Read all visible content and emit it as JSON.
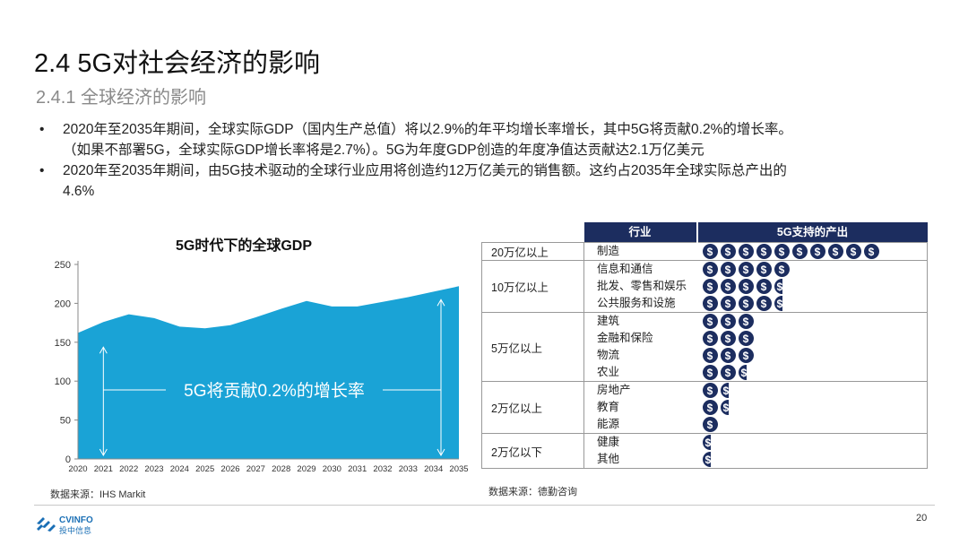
{
  "title": "2.4 5G对社会经济的影响",
  "subtitle": "2.4.1 全球经济的影响",
  "bullets": [
    {
      "lines": [
        "2020年至2035年期间，全球实际GDP（国内生产总值）将以2.9%的年平均增长率增长，其中5G将贡献0.2%的增长率。",
        "（如果不部署5G，全球实际GDP增长率将是2.7%）。5G为年度GDP创造的年度净值达贡献达2.1万亿美元"
      ]
    },
    {
      "lines": [
        "2020年至2035年期间，由5G技术驱动的全球行业应用将创造约12万亿美元的销售额。这约占2035年全球实际总产出的",
        "4.6%"
      ]
    }
  ],
  "bullet_symbol": "•",
  "chart_data": {
    "type": "area",
    "title": "5G时代下的全球GDP",
    "annotation": "5G将贡献0.2%的增长率",
    "x": [
      "2020",
      "2021",
      "2022",
      "2023",
      "2024",
      "2025",
      "2026",
      "2027",
      "2028",
      "2029",
      "2030",
      "2031",
      "2032",
      "2033",
      "2034",
      "2035"
    ],
    "values": [
      162,
      176,
      186,
      181,
      170,
      168,
      172,
      182,
      193,
      203,
      196,
      196,
      202,
      208,
      215,
      222
    ],
    "yticks": [
      0,
      50,
      100,
      150,
      200,
      250
    ],
    "ylim": [
      0,
      250
    ],
    "color": "#1aa3d6"
  },
  "chart_source": "数据来源：IHS Markit",
  "table": {
    "headers": [
      "行业",
      "5G支持的产出"
    ],
    "tiers": [
      {
        "tier": "20万亿以上",
        "rows": [
          {
            "industry": "制造",
            "coins": 10
          }
        ]
      },
      {
        "tier": "10万亿以上",
        "rows": [
          {
            "industry": "信息和通信",
            "coins": 5
          },
          {
            "industry": "批发、零售和娱乐",
            "coins": 4.5
          },
          {
            "industry": "公共服务和设施",
            "coins": 4.5
          }
        ]
      },
      {
        "tier": "5万亿以上",
        "rows": [
          {
            "industry": "建筑",
            "coins": 3
          },
          {
            "industry": "金融和保险",
            "coins": 3
          },
          {
            "industry": "物流",
            "coins": 3
          },
          {
            "industry": "农业",
            "coins": 2.5
          }
        ]
      },
      {
        "tier": "2万亿以上",
        "rows": [
          {
            "industry": "房地产",
            "coins": 1.5
          },
          {
            "industry": "教育",
            "coins": 1.5
          },
          {
            "industry": "能源",
            "coins": 1
          }
        ]
      },
      {
        "tier": "2万亿以下",
        "rows": [
          {
            "industry": "健康",
            "coins": 0.5
          },
          {
            "industry": "其他",
            "coins": 0.5
          }
        ]
      }
    ],
    "coin_symbol": "$",
    "coin_color": "#1c2d5f",
    "header_color": "#1c2d5f"
  },
  "table_source": "数据来源：德勤咨询",
  "logo": {
    "name": "CVINFO",
    "subtitle": "投中信息",
    "color": "#1a6fb5"
  },
  "page_number": "20"
}
